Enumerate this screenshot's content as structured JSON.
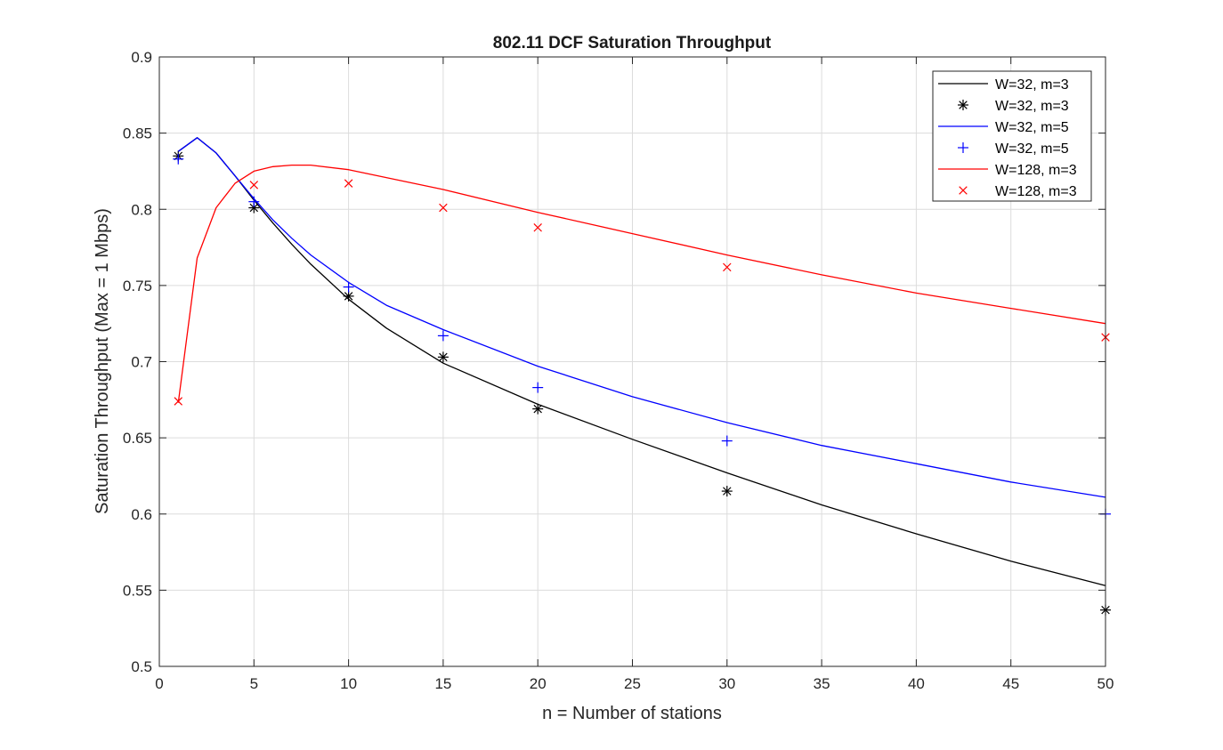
{
  "chart_data": {
    "type": "line",
    "title": "802.11 DCF Saturation Throughput",
    "xlabel": "n = Number of stations",
    "ylabel": "Saturation Throughput (Max = 1 Mbps)",
    "xlim": [
      0,
      50
    ],
    "ylim": [
      0.5,
      0.9
    ],
    "xticks": [
      0,
      5,
      10,
      15,
      20,
      25,
      30,
      35,
      40,
      45,
      50
    ],
    "yticks": [
      0.5,
      0.55,
      0.6,
      0.65,
      0.7,
      0.75,
      0.8,
      0.85,
      0.9
    ],
    "xtick_labels": [
      "0",
      "5",
      "10",
      "15",
      "20",
      "25",
      "30",
      "35",
      "40",
      "45",
      "50"
    ],
    "ytick_labels": [
      "0.5",
      "0.55",
      "0.6",
      "0.65",
      "0.7",
      "0.75",
      "0.8",
      "0.85",
      "0.9"
    ],
    "grid": true,
    "legend_position": "top-right",
    "series": [
      {
        "name": "W=32, m=3",
        "kind": "line",
        "color": "#000000",
        "x": [
          1,
          2,
          3,
          4,
          5,
          6,
          7,
          8,
          10,
          12,
          15,
          20,
          25,
          30,
          35,
          40,
          45,
          50
        ],
        "y": [
          0.838,
          0.847,
          0.837,
          0.822,
          0.806,
          0.791,
          0.777,
          0.764,
          0.741,
          0.722,
          0.699,
          0.672,
          0.649,
          0.627,
          0.606,
          0.587,
          0.569,
          0.553
        ]
      },
      {
        "name": "W=32, m=3",
        "kind": "marker",
        "marker": "asterisk",
        "color": "#000000",
        "x": [
          1,
          5,
          10,
          15,
          20,
          30,
          50
        ],
        "y": [
          0.835,
          0.801,
          0.743,
          0.703,
          0.669,
          0.615,
          0.537
        ]
      },
      {
        "name": "W=32, m=5",
        "kind": "line",
        "color": "#0000ff",
        "x": [
          1,
          2,
          3,
          4,
          5,
          6,
          7,
          8,
          10,
          12,
          15,
          20,
          25,
          30,
          35,
          40,
          45,
          50
        ],
        "y": [
          0.838,
          0.847,
          0.837,
          0.822,
          0.807,
          0.793,
          0.781,
          0.77,
          0.752,
          0.737,
          0.721,
          0.697,
          0.677,
          0.66,
          0.645,
          0.633,
          0.621,
          0.611
        ]
      },
      {
        "name": "W=32, m=5",
        "kind": "marker",
        "marker": "plus",
        "color": "#0000ff",
        "x": [
          1,
          5,
          10,
          15,
          20,
          30,
          50
        ],
        "y": [
          0.833,
          0.805,
          0.749,
          0.717,
          0.683,
          0.648,
          0.6
        ]
      },
      {
        "name": "W=128, m=3",
        "kind": "line",
        "color": "#ff0000",
        "x": [
          1,
          2,
          3,
          4,
          5,
          6,
          7,
          8,
          10,
          15,
          20,
          25,
          30,
          35,
          40,
          45,
          50
        ],
        "y": [
          0.673,
          0.768,
          0.801,
          0.817,
          0.825,
          0.828,
          0.829,
          0.829,
          0.826,
          0.813,
          0.798,
          0.784,
          0.77,
          0.757,
          0.745,
          0.735,
          0.725
        ]
      },
      {
        "name": "W=128, m=3",
        "kind": "marker",
        "marker": "x",
        "color": "#ff0000",
        "x": [
          1,
          5,
          10,
          15,
          20,
          30,
          50
        ],
        "y": [
          0.674,
          0.816,
          0.817,
          0.801,
          0.788,
          0.762,
          0.716
        ]
      }
    ]
  }
}
